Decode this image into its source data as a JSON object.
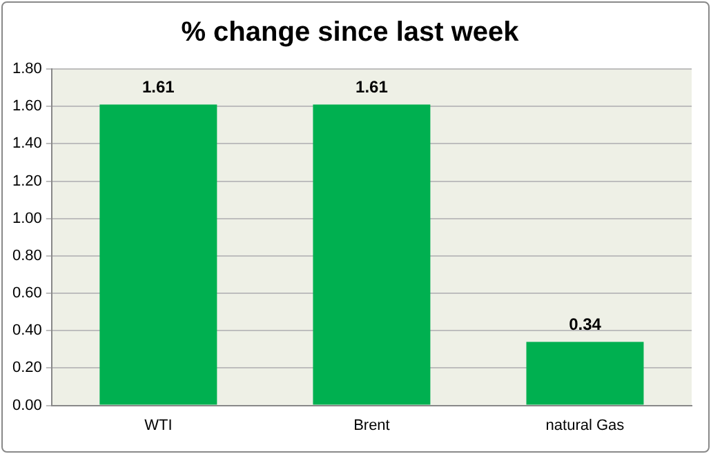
{
  "chart_data": {
    "type": "bar",
    "title": "% change since last week",
    "categories": [
      "WTI",
      "Brent",
      "natural Gas"
    ],
    "values": [
      1.61,
      1.61,
      0.34
    ],
    "color": "#00b050",
    "ylim": [
      0,
      1.8
    ],
    "yticks": [
      {
        "value": 0,
        "label": "0.00"
      },
      {
        "value": 0.2,
        "label": "0.20"
      },
      {
        "value": 0.4,
        "label": "0.40"
      },
      {
        "value": 0.6,
        "label": "0.60"
      },
      {
        "value": 0.8,
        "label": "0.80"
      },
      {
        "value": 1,
        "label": "1.00"
      },
      {
        "value": 1.2,
        "label": "1.20"
      },
      {
        "value": 1.4,
        "label": "1.40"
      },
      {
        "value": 1.6,
        "label": "1.60"
      },
      {
        "value": 1.8,
        "label": "1.80"
      }
    ],
    "grid": "y",
    "data_labels": true,
    "legend": false
  }
}
